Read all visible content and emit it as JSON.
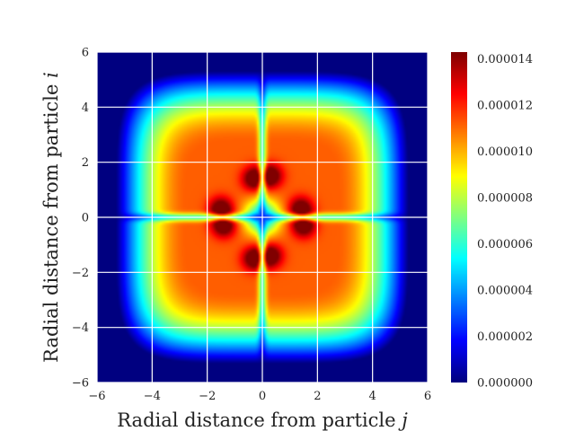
{
  "chart_data": {
    "type": "heatmap",
    "title": "",
    "xlabel": "Radial distance from particle",
    "xlabel_var": "j",
    "ylabel": "Radial distance from particle",
    "ylabel_var": "i",
    "xlim": [
      -6,
      6
    ],
    "ylim": [
      -6,
      6
    ],
    "xticks": [
      -6,
      -4,
      -2,
      0,
      2,
      4,
      6
    ],
    "yticks": [
      -6,
      -4,
      -2,
      0,
      2,
      4,
      6
    ],
    "xtick_labels": [
      "−6",
      "−4",
      "−2",
      "0",
      "2",
      "4",
      "6"
    ],
    "ytick_labels": [
      "−6",
      "−4",
      "−2",
      "0",
      "2",
      "4",
      "6"
    ],
    "grid": true,
    "grid_color": "#ffffff",
    "colormap": "jet",
    "colorbar": {
      "min": 0.0,
      "max": 1.43e-05,
      "ticks": [
        0.0,
        2e-06,
        4e-06,
        6e-06,
        8e-06,
        1e-05,
        1.2e-05,
        1.4e-05
      ],
      "tick_labels": [
        "0.000000",
        "0.000002",
        "0.000004",
        "0.000006",
        "0.000008",
        "0.000010",
        "0.000012",
        "0.000014"
      ]
    },
    "field": {
      "description_of_values": "radially symmetric square-ish distribution",
      "outer_zero_radius": 5.3,
      "plateau_value": 1.12e-05,
      "peak_value": 1.43e-05,
      "peak_points": [
        [
          1.4,
          0.3
        ],
        [
          -1.4,
          -0.3
        ],
        [
          0.3,
          -1.4
        ],
        [
          -0.3,
          1.4
        ],
        [
          1.5,
          -0.3
        ],
        [
          -1.5,
          0.3
        ],
        [
          0.3,
          1.5
        ],
        [
          -0.3,
          -1.5
        ]
      ],
      "center_value": 4e-06
    }
  }
}
